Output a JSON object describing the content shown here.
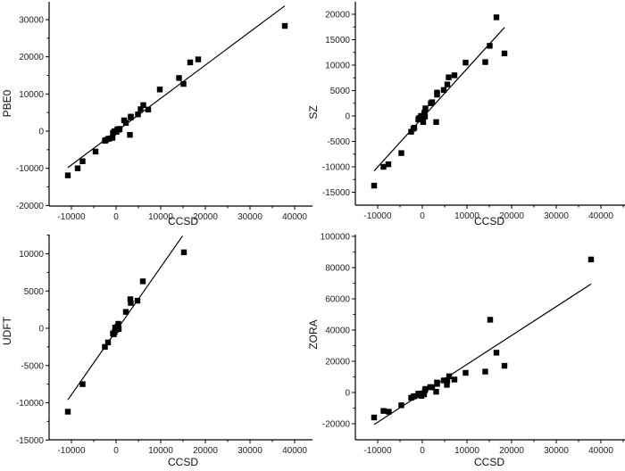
{
  "chart_data": [
    {
      "type": "scatter",
      "panel": "top-left",
      "xlabel": "CCSD",
      "ylabel": "PBE0",
      "xlim": [
        -15000,
        45000
      ],
      "ylim": [
        -20000,
        35000
      ],
      "xticks": [
        -10000,
        0,
        10000,
        20000,
        30000,
        40000
      ],
      "yticks": [
        -20000,
        -10000,
        0,
        10000,
        20000,
        30000
      ],
      "grid": false,
      "fit_line": {
        "x": [
          -10800,
          37800
        ],
        "y": [
          -9800,
          33700
        ]
      },
      "points": [
        [
          -10800,
          -11900
        ],
        [
          -8600,
          -10000
        ],
        [
          -7500,
          -8100
        ],
        [
          -4600,
          -5500
        ],
        [
          -2500,
          -2600
        ],
        [
          -2300,
          -2400
        ],
        [
          -1800,
          -2100
        ],
        [
          -1500,
          -2000
        ],
        [
          -800,
          -1800
        ],
        [
          -700,
          -500
        ],
        [
          -400,
          -100
        ],
        [
          -200,
          0
        ],
        [
          100,
          -200
        ],
        [
          300,
          500
        ],
        [
          600,
          400
        ],
        [
          800,
          600
        ],
        [
          1800,
          2900
        ],
        [
          2200,
          2200
        ],
        [
          3100,
          -1000
        ],
        [
          3300,
          3900
        ],
        [
          3300,
          3700
        ],
        [
          4900,
          4500
        ],
        [
          5500,
          5900
        ],
        [
          6100,
          7000
        ],
        [
          7200,
          5800
        ],
        [
          9800,
          11200
        ],
        [
          14100,
          14300
        ],
        [
          15100,
          12700
        ],
        [
          16600,
          18500
        ],
        [
          18400,
          19300
        ],
        [
          37800,
          28300
        ]
      ]
    },
    {
      "type": "scatter",
      "panel": "top-right",
      "xlabel": "CCSD",
      "ylabel": "SZ",
      "xlim": [
        -15000,
        45000
      ],
      "ylim": [
        -17500,
        22500
      ],
      "xticks": [
        -10000,
        0,
        10000,
        20000,
        30000,
        40000
      ],
      "yticks": [
        -15000,
        -10000,
        -5000,
        0,
        5000,
        10000,
        15000,
        20000
      ],
      "grid": false,
      "fit_line": {
        "x": [
          -10800,
          18400
        ],
        "y": [
          -10800,
          17400
        ]
      },
      "points": [
        [
          -10800,
          -13700
        ],
        [
          -8700,
          -10000
        ],
        [
          -7600,
          -9500
        ],
        [
          -4700,
          -7300
        ],
        [
          -2500,
          -3100
        ],
        [
          -2000,
          -2500
        ],
        [
          -1800,
          -2300
        ],
        [
          -900,
          -700
        ],
        [
          -700,
          -400
        ],
        [
          -300,
          0
        ],
        [
          0,
          -500
        ],
        [
          200,
          -1200
        ],
        [
          400,
          300
        ],
        [
          500,
          700
        ],
        [
          600,
          -100
        ],
        [
          700,
          1500
        ],
        [
          1900,
          2500
        ],
        [
          2200,
          2700
        ],
        [
          3100,
          -1200
        ],
        [
          3300,
          4200
        ],
        [
          3300,
          4600
        ],
        [
          4800,
          5100
        ],
        [
          5600,
          6200
        ],
        [
          5900,
          7600
        ],
        [
          7200,
          8000
        ],
        [
          9700,
          10500
        ],
        [
          14100,
          10600
        ],
        [
          15100,
          13800
        ],
        [
          16600,
          19400
        ],
        [
          18400,
          12300
        ]
      ]
    },
    {
      "type": "scatter",
      "panel": "bottom-left",
      "xlabel": "CCSD",
      "ylabel": "UDFT",
      "xlim": [
        -15000,
        45000
      ],
      "ylim": [
        -15000,
        12500
      ],
      "xticks": [
        -10000,
        0,
        10000,
        20000,
        30000,
        40000
      ],
      "yticks": [
        -15000,
        -10000,
        -5000,
        0,
        5000,
        10000
      ],
      "grid": false,
      "fit_line": {
        "x": [
          -10800,
          14900
        ],
        "y": [
          -9600,
          12400
        ]
      },
      "points": [
        [
          -10800,
          -11200
        ],
        [
          -7500,
          -7500
        ],
        [
          -2500,
          -2500
        ],
        [
          -1800,
          -1900
        ],
        [
          -700,
          -700
        ],
        [
          -500,
          -800
        ],
        [
          -300,
          -500
        ],
        [
          -200,
          100
        ],
        [
          0,
          -200
        ],
        [
          300,
          200
        ],
        [
          500,
          600
        ],
        [
          600,
          -100
        ],
        [
          2200,
          2200
        ],
        [
          3200,
          3900
        ],
        [
          3300,
          3400
        ],
        [
          4800,
          3700
        ],
        [
          6000,
          6300
        ],
        [
          15200,
          10200
        ]
      ]
    },
    {
      "type": "scatter",
      "panel": "bottom-right",
      "xlabel": "CCSD",
      "ylabel": "ZORA",
      "xlim": [
        -15000,
        45000
      ],
      "ylim": [
        -30000,
        100000
      ],
      "xticks": [
        -10000,
        0,
        10000,
        20000,
        30000,
        40000
      ],
      "yticks": [
        -20000,
        0,
        20000,
        40000,
        60000,
        80000,
        100000
      ],
      "grid": false,
      "fit_line": {
        "x": [
          -10800,
          37800
        ],
        "y": [
          -20500,
          69500
        ]
      },
      "points": [
        [
          -10800,
          -16000
        ],
        [
          -8700,
          -11800
        ],
        [
          -7500,
          -12300
        ],
        [
          -4700,
          -8200
        ],
        [
          -2500,
          -3400
        ],
        [
          -2000,
          -2600
        ],
        [
          -1700,
          -2300
        ],
        [
          -900,
          -700
        ],
        [
          -400,
          -1500
        ],
        [
          -200,
          -2200
        ],
        [
          200,
          -500
        ],
        [
          400,
          -1200
        ],
        [
          600,
          1400
        ],
        [
          700,
          2300
        ],
        [
          1800,
          3500
        ],
        [
          2200,
          3300
        ],
        [
          3100,
          500
        ],
        [
          3300,
          5500
        ],
        [
          3300,
          6400
        ],
        [
          4800,
          7700
        ],
        [
          5500,
          4900
        ],
        [
          5600,
          7900
        ],
        [
          6000,
          10400
        ],
        [
          7200,
          8300
        ],
        [
          9700,
          12600
        ],
        [
          14100,
          13400
        ],
        [
          15200,
          46600
        ],
        [
          16600,
          25500
        ],
        [
          18400,
          17100
        ],
        [
          37800,
          85200
        ]
      ]
    }
  ],
  "panels": [
    {
      "xlabel": "CCSD",
      "ylabel": "PBE0",
      "xtick_labels": [
        "-10000",
        "0",
        "10000",
        "20000",
        "30000",
        "40000"
      ],
      "ytick_labels": [
        "-20000",
        "-10000",
        "0",
        "10000",
        "20000",
        "30000"
      ]
    },
    {
      "xlabel": "CCSD",
      "ylabel": "SZ",
      "xtick_labels": [
        "-10000",
        "0",
        "10000",
        "20000",
        "30000",
        "40000"
      ],
      "ytick_labels": [
        "-15000",
        "-10000",
        "-5000",
        "0",
        "5000",
        "10000",
        "15000",
        "20000"
      ]
    },
    {
      "xlabel": "CCSD",
      "ylabel": "UDFT",
      "xtick_labels": [
        "-10000",
        "0",
        "10000",
        "20000",
        "30000",
        "40000"
      ],
      "ytick_labels": [
        "-15000",
        "-10000",
        "-5000",
        "0",
        "5000",
        "10000"
      ]
    },
    {
      "xlabel": "CCSD",
      "ylabel": "ZORA",
      "xtick_labels": [
        "-10000",
        "0",
        "10000",
        "20000",
        "30000",
        "40000"
      ],
      "ytick_labels": [
        "-20000",
        "0",
        "20000",
        "40000",
        "60000",
        "80000",
        "100000"
      ]
    }
  ],
  "colors": {
    "marker": "#000000",
    "line": "#000000",
    "axis": "#000000",
    "background": "#ffffff"
  }
}
